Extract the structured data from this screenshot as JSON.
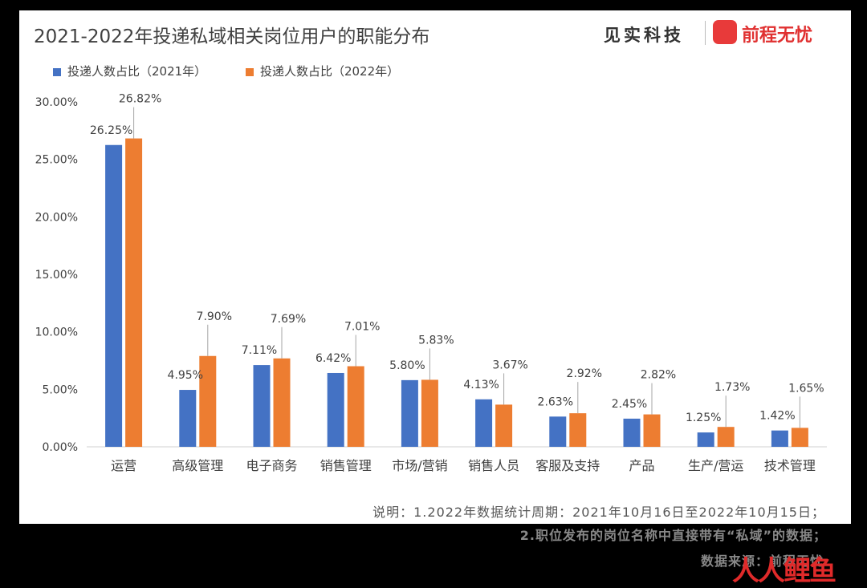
{
  "title": "2021-2022年投递私域相关岗位用户的职能分布",
  "brand": {
    "left": "见实科技",
    "right": "前程无忧"
  },
  "colors": {
    "series2021": "#4472c4",
    "series2022": "#ed7d31",
    "brandRed": "#e83a3a"
  },
  "notes": {
    "line1": "说明：1.2022年数据统计周期：2021年10月16日至2022年10月15日；",
    "line2": "2.职位发布的岗位名称中直接带有“私域”的数据；",
    "line3": "数据来源：前程无忧"
  },
  "watermark": "人人都是产品经理",
  "chart_data": {
    "type": "bar",
    "title": "2021-2022年投递私域相关岗位用户的职能分布",
    "categories": [
      "运营",
      "高级管理",
      "电子商务",
      "销售管理",
      "市场/营销",
      "销售人员",
      "客服及支持",
      "产品",
      "生产/营运",
      "技术管理"
    ],
    "series": [
      {
        "name": "投递人数占比（2021年）",
        "values": [
          26.25,
          4.95,
          7.11,
          6.42,
          5.8,
          4.13,
          2.63,
          2.45,
          1.25,
          1.42
        ]
      },
      {
        "name": "投递人数占比（2022年）",
        "values": [
          26.82,
          7.9,
          7.69,
          7.01,
          5.83,
          3.67,
          2.92,
          2.82,
          1.73,
          1.65
        ]
      }
    ],
    "yticks": [
      "0.00%",
      "5.00%",
      "10.00%",
      "15.00%",
      "20.00%",
      "25.00%",
      "30.00%"
    ],
    "ylim": [
      0,
      30
    ],
    "grid": false,
    "legend": "top-left"
  }
}
